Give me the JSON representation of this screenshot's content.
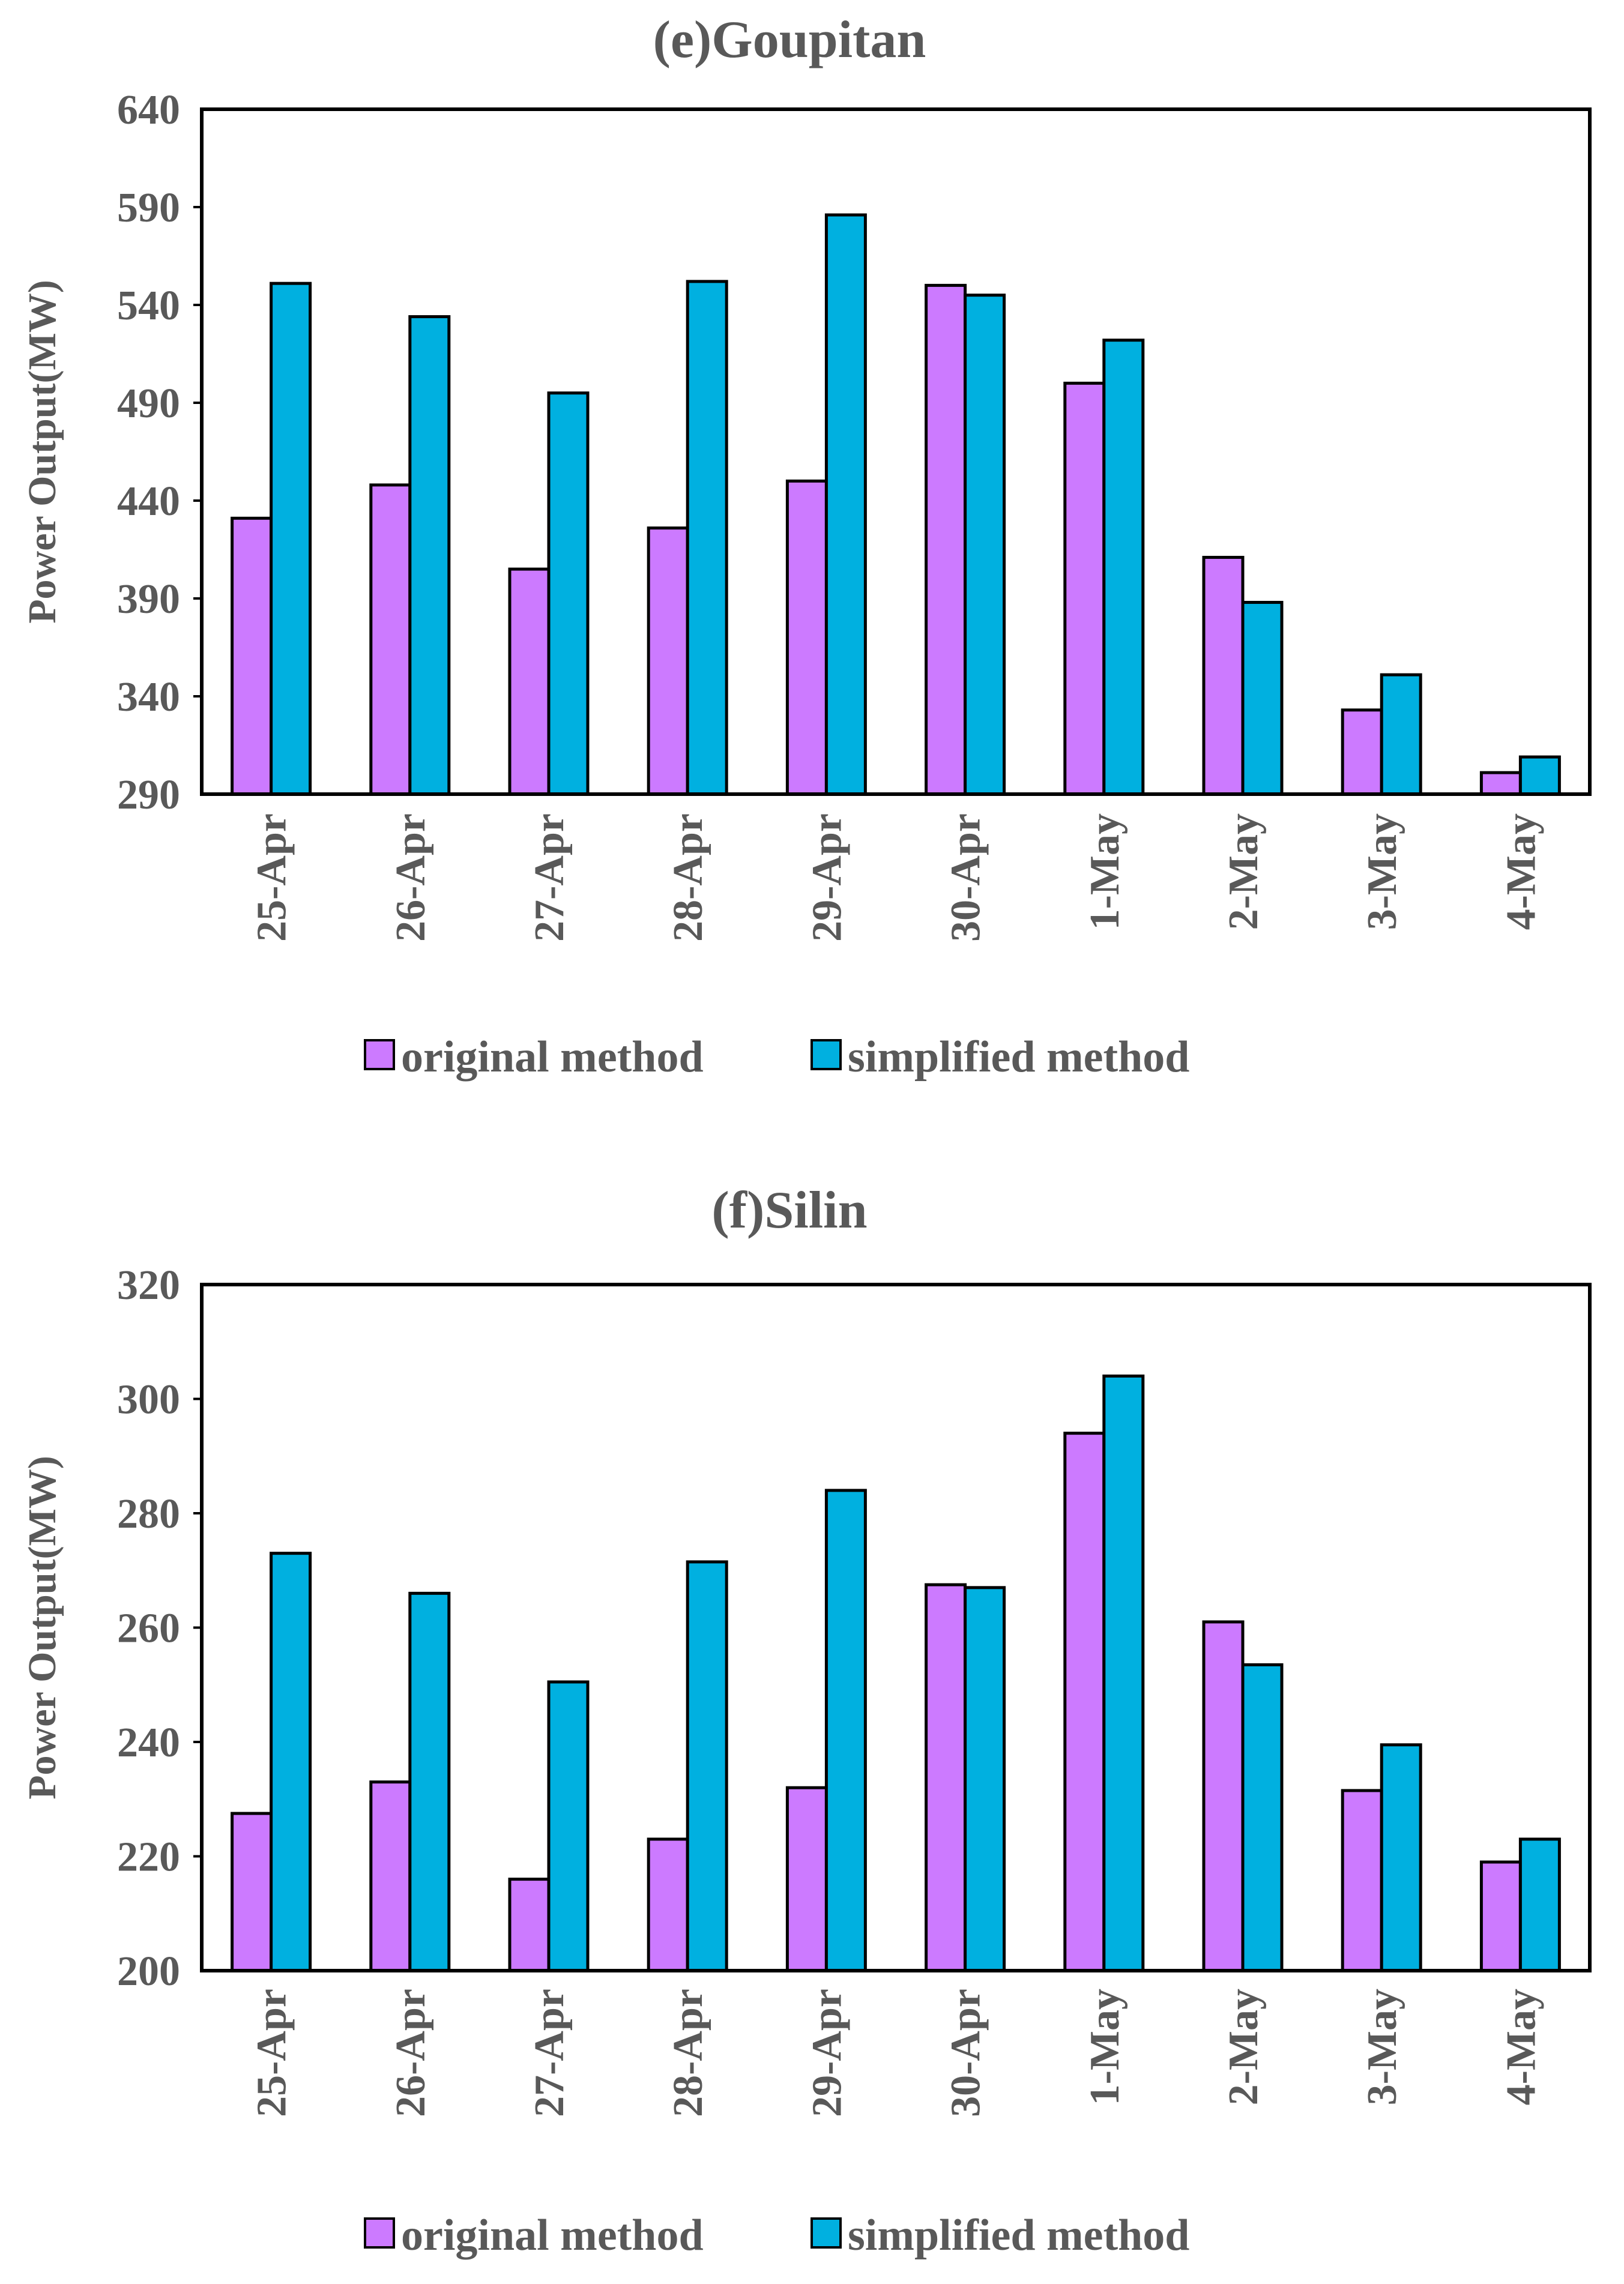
{
  "colors": {
    "original": "#cc7aff",
    "simplified": "#00b0e0",
    "axis": "#000000",
    "text": "#595959"
  },
  "chart_data": [
    {
      "type": "bar",
      "title": "(e)Goupitan",
      "ylabel": "Power Output(MW)",
      "xlabel": "",
      "ylim": [
        290,
        640
      ],
      "yticks": [
        "640",
        "590",
        "540",
        "490",
        "440",
        "390",
        "340",
        "290"
      ],
      "categories": [
        "25-Apr",
        "26-Apr",
        "27-Apr",
        "28-Apr",
        "29-Apr",
        "30-Apr",
        "1-May",
        "2-May",
        "3-May",
        "4-May"
      ],
      "series": [
        {
          "name": "original method",
          "values": [
            431,
            448,
            405,
            426,
            450,
            550,
            500,
            411,
            333,
            301
          ]
        },
        {
          "name": "simplified method",
          "values": [
            551,
            534,
            495,
            552,
            586,
            545,
            522,
            388,
            351,
            309
          ]
        }
      ],
      "legend": "bottom"
    },
    {
      "type": "bar",
      "title": "(f)Silin",
      "ylabel": "Power Output(MW)",
      "xlabel": "",
      "ylim": [
        200,
        320
      ],
      "yticks": [
        "320",
        "300",
        "280",
        "260",
        "240",
        "220",
        "200"
      ],
      "categories": [
        "25-Apr",
        "26-Apr",
        "27-Apr",
        "28-Apr",
        "29-Apr",
        "30-Apr",
        "1-May",
        "2-May",
        "3-May",
        "4-May"
      ],
      "series": [
        {
          "name": "original method",
          "values": [
            227.5,
            233,
            216,
            223,
            232,
            267.5,
            294,
            261,
            231.5,
            219
          ]
        },
        {
          "name": "simplified method",
          "values": [
            273,
            266,
            250.5,
            271.5,
            284,
            267,
            304,
            253.5,
            239.5,
            223
          ]
        }
      ],
      "legend": "bottom"
    }
  ]
}
